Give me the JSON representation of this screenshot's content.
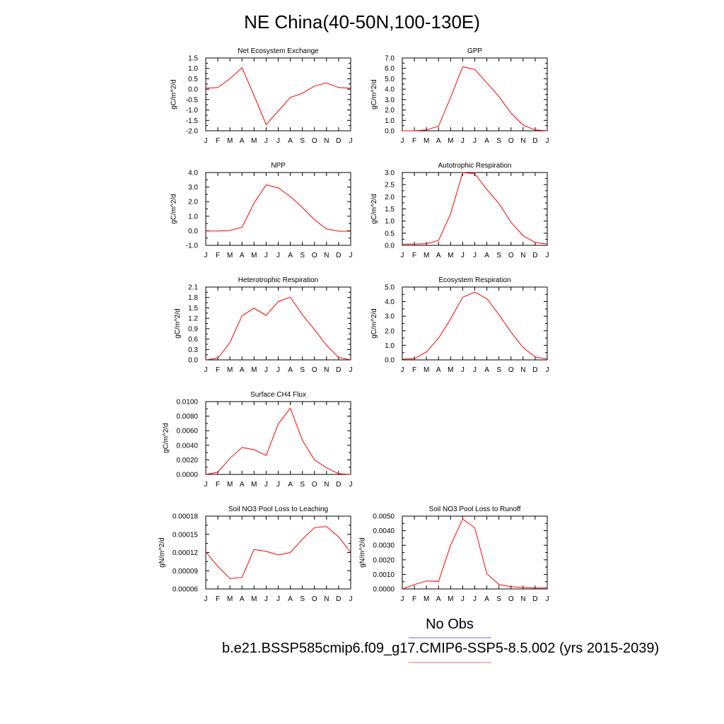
{
  "title": "NE China(40-50N,100-130E)",
  "legend": {
    "obs_label": "No Obs",
    "obs_color": "#6666ff",
    "model_color": "#ff6666"
  },
  "footer": "b.e21.BSSP585cmip6.f09_g17.CMIP6-SSP5-8.5.002 (yrs 2015-2039)",
  "line_color": "#ff0000",
  "chart_data": [
    {
      "type": "line",
      "title": "Net Ecosystem Exchange",
      "ylabel": "gC/m^2/d",
      "x": [
        "J",
        "F",
        "M",
        "A",
        "M",
        "J",
        "J",
        "A",
        "S",
        "O",
        "N",
        "D",
        "J"
      ],
      "series": [
        {
          "values": [
            0.05,
            0.08,
            0.5,
            1.03,
            -0.3,
            -1.7,
            -1.05,
            -0.4,
            -0.2,
            0.15,
            0.3,
            0.08,
            0.05
          ]
        }
      ],
      "ylim": [
        -2.0,
        1.5
      ],
      "yticks": [
        "-2.0",
        "-1.5",
        "-1.0",
        "-0.5",
        "0.0",
        "0.5",
        "1.0",
        "1.5"
      ]
    },
    {
      "type": "line",
      "title": "GPP",
      "ylabel": "gC/m^2/d",
      "x": [
        "J",
        "F",
        "M",
        "A",
        "M",
        "J",
        "J",
        "A",
        "S",
        "O",
        "N",
        "D",
        "J"
      ],
      "series": [
        {
          "values": [
            0.0,
            0.0,
            0.08,
            0.45,
            3.2,
            6.15,
            5.9,
            4.6,
            3.3,
            1.7,
            0.55,
            0.08,
            0.0
          ]
        }
      ],
      "ylim": [
        0.0,
        7.0
      ],
      "yticks": [
        "0.0",
        "1.0",
        "2.0",
        "3.0",
        "4.0",
        "5.0",
        "6.0",
        "7.0"
      ]
    },
    {
      "type": "line",
      "title": "NPP",
      "ylabel": "gC/m^2/d",
      "x": [
        "J",
        "F",
        "M",
        "A",
        "M",
        "J",
        "J",
        "A",
        "S",
        "O",
        "N",
        "D",
        "J"
      ],
      "series": [
        {
          "values": [
            -0.02,
            -0.02,
            0.02,
            0.25,
            1.9,
            3.15,
            2.95,
            2.35,
            1.6,
            0.75,
            0.12,
            -0.03,
            -0.03
          ]
        }
      ],
      "ylim": [
        -1.0,
        4.0
      ],
      "yticks": [
        "-1.0",
        "0.0",
        "1.0",
        "2.0",
        "3.0",
        "4.0"
      ]
    },
    {
      "type": "line",
      "title": "Autotrophic Respiration",
      "ylabel": "gC/m^2/d",
      "x": [
        "J",
        "F",
        "M",
        "A",
        "M",
        "J",
        "J",
        "A",
        "S",
        "O",
        "N",
        "D",
        "J"
      ],
      "series": [
        {
          "values": [
            0.05,
            0.05,
            0.07,
            0.2,
            1.3,
            3.0,
            2.95,
            2.3,
            1.72,
            0.95,
            0.4,
            0.12,
            0.05
          ]
        }
      ],
      "ylim": [
        0.0,
        3.0
      ],
      "yticks": [
        "0.0",
        "0.5",
        "1.0",
        "1.5",
        "2.0",
        "2.5",
        "3.0"
      ]
    },
    {
      "type": "line",
      "title": "Heterotrophic Respiration",
      "ylabel": "gC/m^2/d",
      "x": [
        "J",
        "F",
        "M",
        "A",
        "M",
        "J",
        "J",
        "A",
        "S",
        "O",
        "N",
        "D",
        "J"
      ],
      "series": [
        {
          "values": [
            0.0,
            0.05,
            0.5,
            1.27,
            1.49,
            1.28,
            1.68,
            1.81,
            1.3,
            0.87,
            0.42,
            0.07,
            0.0
          ]
        }
      ],
      "ylim": [
        0.0,
        2.1
      ],
      "yticks": [
        "0.0",
        "0.3",
        "0.6",
        "0.9",
        "1.2",
        "1.5",
        "1.8",
        "2.1"
      ]
    },
    {
      "type": "line",
      "title": "Ecosystem Respiration",
      "ylabel": "gC/m^2/d",
      "x": [
        "J",
        "F",
        "M",
        "A",
        "M",
        "J",
        "J",
        "A",
        "S",
        "O",
        "N",
        "D",
        "J"
      ],
      "series": [
        {
          "values": [
            0.05,
            0.08,
            0.55,
            1.5,
            2.8,
            4.3,
            4.65,
            4.2,
            3.1,
            1.9,
            0.85,
            0.2,
            0.07
          ]
        }
      ],
      "ylim": [
        0.0,
        5.0
      ],
      "yticks": [
        "0.0",
        "1.0",
        "2.0",
        "3.0",
        "4.0",
        "5.0"
      ]
    },
    {
      "type": "line",
      "title": "Surface CH4 Flux",
      "ylabel": "gC/m^2/d",
      "x": [
        "J",
        "F",
        "M",
        "A",
        "M",
        "J",
        "J",
        "A",
        "S",
        "O",
        "N",
        "D",
        "J"
      ],
      "series": [
        {
          "values": [
            0.0,
            0.0003,
            0.0022,
            0.0037,
            0.0034,
            0.0026,
            0.0069,
            0.0091,
            0.0047,
            0.002,
            0.0009,
            0.0001,
            0.0
          ]
        }
      ],
      "ylim": [
        0.0,
        0.01
      ],
      "yticks": [
        "0.0000",
        "0.0020",
        "0.0040",
        "0.0060",
        "0.0080",
        "0.0100"
      ]
    },
    {
      "type": "line",
      "title": "Soil NO3 Pool Loss to Leaching",
      "ylabel": "gN/m^2/d",
      "x": [
        "J",
        "F",
        "M",
        "A",
        "M",
        "J",
        "J",
        "A",
        "S",
        "O",
        "N",
        "D",
        "J"
      ],
      "series": [
        {
          "values": [
            0.000121,
            9.7e-05,
            7.7e-05,
            7.9e-05,
            0.000125,
            0.000122,
            0.000116,
            0.00012,
            0.000142,
            0.000161,
            0.000163,
            0.000146,
            0.00012
          ]
        }
      ],
      "ylim": [
        6e-05,
        0.00018
      ],
      "yticks": [
        "0.00006",
        "0.00009",
        "0.00012",
        "0.00015",
        "0.00018"
      ]
    },
    {
      "type": "line",
      "title": "Soil NO3 Pool Loss to Runoff",
      "ylabel": "gN/m^2/d",
      "x": [
        "J",
        "F",
        "M",
        "A",
        "M",
        "J",
        "J",
        "A",
        "S",
        "O",
        "N",
        "D",
        "J"
      ],
      "series": [
        {
          "values": [
            0.0,
            0.0003,
            0.00055,
            0.00052,
            0.003,
            0.0048,
            0.0042,
            0.00105,
            0.0003,
            0.00015,
            0.0001,
            7e-05,
            7e-05
          ]
        }
      ],
      "ylim": [
        0.0,
        0.005
      ],
      "yticks": [
        "0.0000",
        "0.0010",
        "0.0020",
        "0.0030",
        "0.0040",
        "0.0050"
      ]
    }
  ]
}
